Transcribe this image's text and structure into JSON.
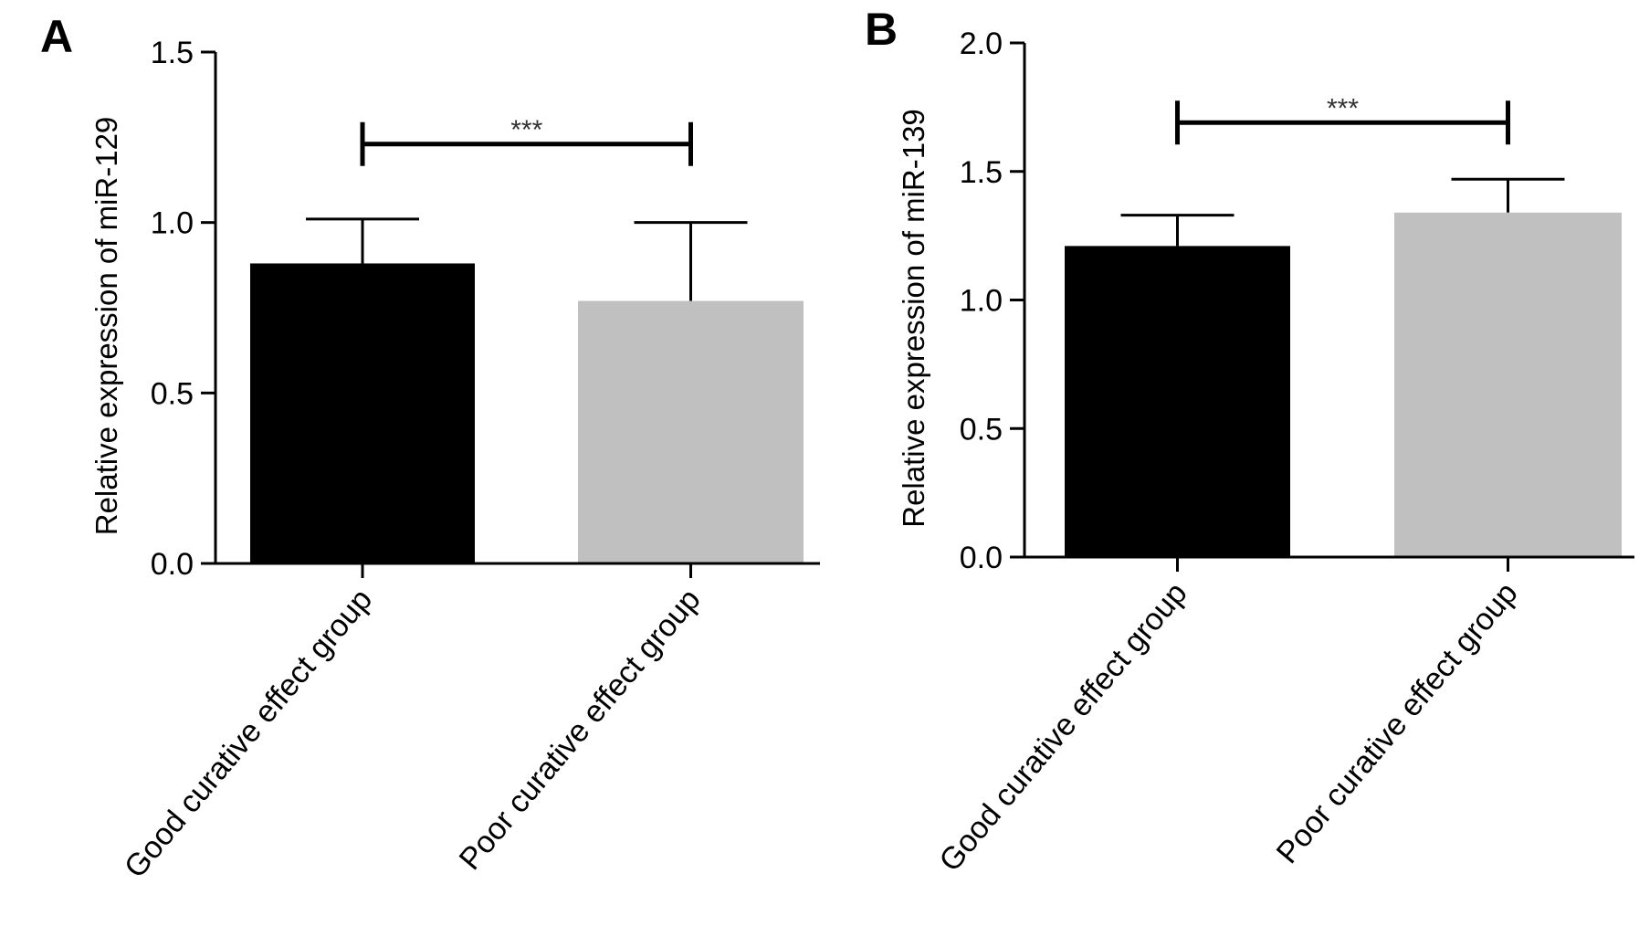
{
  "chart_data": [
    {
      "type": "bar",
      "panel": "A",
      "ylabel": "Relative expression of miR-129",
      "categories": [
        "Good curative effect group",
        "Poor curative effect group"
      ],
      "values": [
        0.88,
        0.77
      ],
      "error_upper": [
        1.01,
        1.0
      ],
      "colors": [
        "#000000",
        "#c0c0c0"
      ],
      "ylim": [
        0,
        1.5
      ],
      "yticks": [
        "0.0",
        "0.5",
        "1.0",
        "1.5"
      ],
      "significance": {
        "label": "***",
        "y": 1.23
      },
      "grid": false
    },
    {
      "type": "bar",
      "panel": "B",
      "ylabel": "Relative expression of miR-139",
      "categories": [
        "Good curative effect group",
        "Poor curative effect group"
      ],
      "values": [
        1.21,
        1.34
      ],
      "error_upper": [
        1.33,
        1.47
      ],
      "colors": [
        "#000000",
        "#c0c0c0"
      ],
      "ylim": [
        0,
        2.0
      ],
      "yticks": [
        "0.0",
        "0.5",
        "1.0",
        "1.5",
        "2.0"
      ],
      "significance": {
        "label": "***",
        "y": 1.69
      },
      "grid": false
    }
  ]
}
